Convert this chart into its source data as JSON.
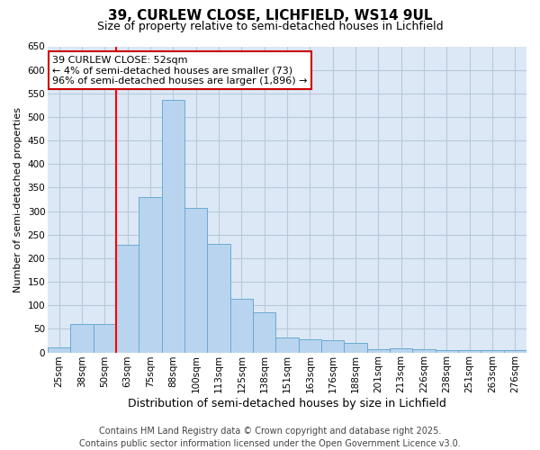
{
  "title_line1": "39, CURLEW CLOSE, LICHFIELD, WS14 9UL",
  "title_line2": "Size of property relative to semi-detached houses in Lichfield",
  "xlabel": "Distribution of semi-detached houses by size in Lichfield",
  "ylabel": "Number of semi-detached properties",
  "categories": [
    "25sqm",
    "38sqm",
    "50sqm",
    "63sqm",
    "75sqm",
    "88sqm",
    "100sqm",
    "113sqm",
    "125sqm",
    "138sqm",
    "151sqm",
    "163sqm",
    "176sqm",
    "188sqm",
    "201sqm",
    "213sqm",
    "226sqm",
    "238sqm",
    "251sqm",
    "263sqm",
    "276sqm"
  ],
  "values": [
    10,
    60,
    60,
    228,
    330,
    537,
    307,
    230,
    113,
    86,
    31,
    28,
    25,
    20,
    7,
    8,
    7,
    5,
    5,
    4,
    5
  ],
  "bar_color": "#b8d4ee",
  "bar_edge_color": "#6aaad4",
  "vline_x_index": 2,
  "annotation_text": "39 CURLEW CLOSE: 52sqm\n← 4% of semi-detached houses are smaller (73)\n96% of semi-detached houses are larger (1,896) →",
  "annotation_box_color": "#ffffff",
  "annotation_box_edge_color": "#cc0000",
  "ylim": [
    0,
    650
  ],
  "yticks": [
    0,
    50,
    100,
    150,
    200,
    250,
    300,
    350,
    400,
    450,
    500,
    550,
    600,
    650
  ],
  "footer_line1": "Contains HM Land Registry data © Crown copyright and database right 2025.",
  "footer_line2": "Contains public sector information licensed under the Open Government Licence v3.0.",
  "fig_bg_color": "#ffffff",
  "plot_bg_color": "#dce8f5",
  "grid_color": "#b8c8dc",
  "title_fontsize": 11,
  "subtitle_fontsize": 9,
  "xlabel_fontsize": 9,
  "ylabel_fontsize": 8,
  "tick_fontsize": 7.5,
  "annotation_fontsize": 8,
  "footer_fontsize": 7
}
